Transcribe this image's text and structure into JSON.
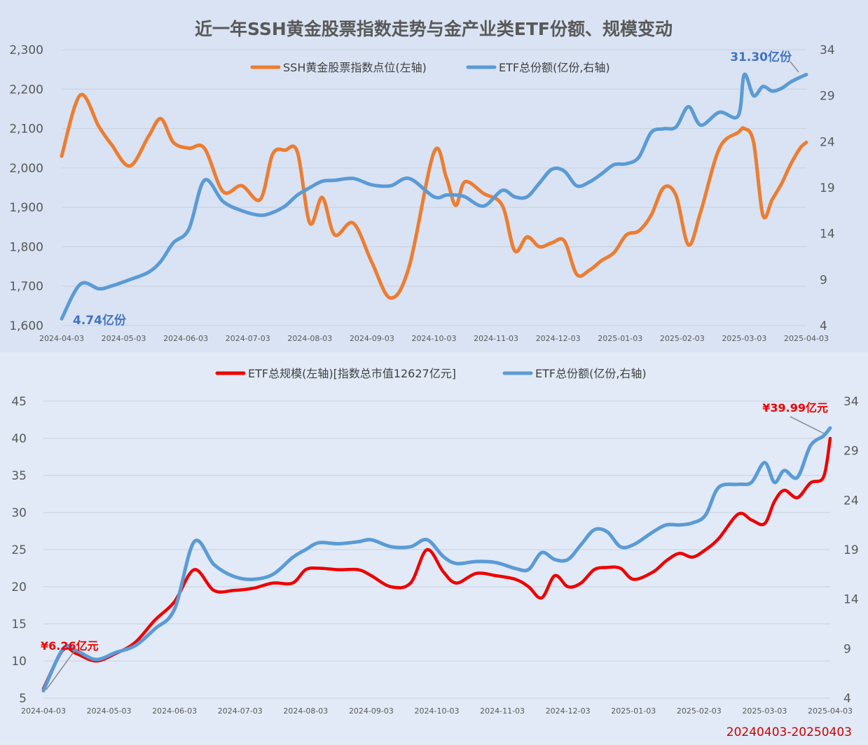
{
  "title": "近一年SSH黄金股票指数走势与金产业类ETF份额、规模变动",
  "footer_range": "20240403-20250403",
  "colors": {
    "orange": "#ed7d31",
    "blue": "#5b9bd5",
    "red": "#ee0000",
    "blue_label": "#4472c4",
    "panel_top": "#d9e3f3",
    "panel_bottom": "#e1eaf6"
  },
  "chart_data": [
    {
      "type": "line",
      "legend": [
        "SSH黄金股票指数点位(左轴)",
        "ETF总份额(亿份,右轴)"
      ],
      "x_labels": [
        "2024-04-03",
        "2024-05-03",
        "2024-06-03",
        "2024-07-03",
        "2024-08-03",
        "2024-09-03",
        "2024-10-03",
        "2024-11-03",
        "2024-12-03",
        "2025-01-03",
        "2025-02-03",
        "2025-03-03",
        "2025-04-03"
      ],
      "y_left": {
        "min": 1600,
        "max": 2300,
        "ticks": [
          "1,600",
          "1,700",
          "1,800",
          "1,900",
          "2,000",
          "2,100",
          "2,200",
          "2,300"
        ]
      },
      "y_right": {
        "min": 4,
        "max": 34,
        "ticks": [
          "4",
          "9",
          "14",
          "19",
          "24",
          "29",
          "34"
        ]
      },
      "x": [
        0,
        0.3,
        0.6,
        0.8,
        1.1,
        1.4,
        1.6,
        1.8,
        2.05,
        2.3,
        2.6,
        2.9,
        3.2,
        3.4,
        3.6,
        3.8,
        4.0,
        4.2,
        4.4,
        4.7,
        5.0,
        5.3,
        5.6,
        6.0,
        6.2,
        6.35,
        6.5,
        6.8,
        7.1,
        7.3,
        7.5,
        7.7,
        7.9,
        8.1,
        8.3,
        8.5,
        8.7,
        8.9,
        9.1,
        9.3,
        9.5,
        9.7,
        9.9,
        10.1,
        10.3,
        10.6,
        10.9,
        11.0,
        11.15,
        11.3,
        11.45,
        11.6,
        11.75,
        11.9,
        12.0
      ],
      "series": [
        {
          "name": "SSH黄金股票指数点位(左轴)",
          "axis": "left",
          "values": [
            2030,
            2185,
            2105,
            2060,
            2005,
            2080,
            2125,
            2065,
            2050,
            2050,
            1940,
            1955,
            1920,
            2035,
            2045,
            2040,
            1860,
            1925,
            1830,
            1860,
            1760,
            1670,
            1750,
            2040,
            1975,
            1905,
            1965,
            1935,
            1905,
            1790,
            1825,
            1800,
            1810,
            1815,
            1730,
            1740,
            1765,
            1785,
            1830,
            1840,
            1880,
            1950,
            1930,
            1805,
            1890,
            2050,
            2090,
            2100,
            2065,
            1880,
            1920,
            1960,
            2010,
            2050,
            2065
          ]
        },
        {
          "name": "ETF总份额(亿份,右轴)",
          "axis": "right",
          "values": [
            4.74,
            8.5,
            8.0,
            8.3,
            9.0,
            9.8,
            11.0,
            13.0,
            14.5,
            19.8,
            17.5,
            16.5,
            16.0,
            16.3,
            17.0,
            18.2,
            19.0,
            19.7,
            19.8,
            20.0,
            19.3,
            19.2,
            20.0,
            18.0,
            18.2,
            18.2,
            18.0,
            17.0,
            18.7,
            18.0,
            18.0,
            19.5,
            21.0,
            20.8,
            19.2,
            19.6,
            20.5,
            21.5,
            21.6,
            22.3,
            25.0,
            25.4,
            25.6,
            27.8,
            25.8,
            27.2,
            26.8,
            31.3,
            29.0,
            30.0,
            29.5,
            29.8,
            30.5,
            31.0,
            31.3
          ]
        }
      ],
      "annotations": [
        "4.74亿份",
        "31.30亿份"
      ]
    },
    {
      "type": "line",
      "legend": [
        "ETF总规模(左轴)[指数总市值12627亿元]",
        "ETF总份额(亿份,右轴)"
      ],
      "x_labels": [
        "2024-04-03",
        "2024-05-03",
        "2024-06-03",
        "2024-07-03",
        "2024-08-03",
        "2024-09-03",
        "2024-10-03",
        "2024-11-03",
        "2024-12-03",
        "2025-01-03",
        "2025-02-03",
        "2025-03-03",
        "2025-04-03"
      ],
      "y_left": {
        "min": 5,
        "max": 45,
        "ticks": [
          "5",
          "10",
          "15",
          "20",
          "25",
          "30",
          "35",
          "40",
          "45"
        ]
      },
      "y_right": {
        "min": 4,
        "max": 34,
        "ticks": [
          "4",
          "9",
          "14",
          "19",
          "24",
          "29",
          "34"
        ]
      },
      "x": [
        0,
        0.3,
        0.5,
        0.8,
        1.1,
        1.4,
        1.7,
        2.0,
        2.3,
        2.6,
        2.9,
        3.2,
        3.5,
        3.8,
        4.0,
        4.2,
        4.5,
        4.8,
        5.0,
        5.3,
        5.6,
        5.85,
        6.1,
        6.3,
        6.6,
        6.9,
        7.2,
        7.4,
        7.6,
        7.8,
        8.0,
        8.2,
        8.4,
        8.6,
        8.8,
        9.0,
        9.3,
        9.5,
        9.7,
        9.9,
        10.1,
        10.3,
        10.6,
        10.8,
        11.0,
        11.15,
        11.3,
        11.5,
        11.7,
        11.9,
        12.0
      ],
      "series": [
        {
          "name": "ETF总规模(左轴)[指数总市值12627亿元]",
          "axis": "left",
          "values": [
            6.26,
            11.5,
            11.0,
            10.0,
            11.0,
            12.5,
            15.5,
            18.0,
            22.3,
            19.5,
            19.5,
            19.8,
            20.5,
            20.5,
            22.3,
            22.5,
            22.3,
            22.3,
            21.5,
            20.0,
            20.5,
            25.0,
            22.0,
            20.5,
            21.8,
            21.5,
            21.0,
            20.0,
            18.5,
            21.5,
            20.0,
            20.5,
            22.3,
            22.6,
            22.5,
            21.0,
            22.0,
            23.5,
            24.5,
            24.0,
            25.0,
            26.5,
            29.8,
            29.0,
            28.5,
            31.5,
            33.0,
            32.0,
            34.0,
            34.8,
            39.99
          ]
        },
        {
          "name": "ETF总份额(亿份,右轴)",
          "axis": "right",
          "values": [
            4.74,
            9.0,
            8.8,
            7.9,
            8.6,
            9.3,
            11.0,
            13.0,
            19.8,
            17.5,
            16.3,
            16.0,
            16.5,
            18.2,
            19.0,
            19.7,
            19.6,
            19.8,
            20.0,
            19.3,
            19.3,
            20.0,
            18.3,
            17.6,
            17.8,
            17.7,
            17.1,
            17.0,
            18.7,
            18.0,
            18.0,
            19.5,
            21.0,
            20.8,
            19.3,
            19.5,
            20.8,
            21.5,
            21.5,
            21.7,
            22.5,
            25.3,
            25.6,
            25.8,
            27.8,
            25.8,
            27.0,
            26.3,
            29.5,
            30.5,
            31.3
          ]
        }
      ],
      "annotations": [
        "¥6.26亿元",
        "¥39.99亿元"
      ]
    }
  ]
}
